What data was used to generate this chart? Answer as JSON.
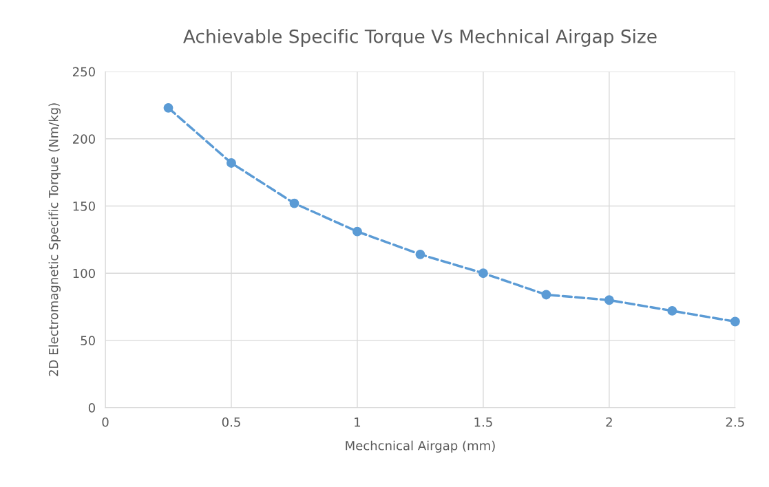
{
  "chart_data": {
    "type": "line",
    "title": "Achievable Specific Torque Vs Mechnical Airgap Size",
    "xlabel": "Mechcnical Airgap (mm)",
    "ylabel": "2D Electromagnetic Specific Torque (Nm/kg)",
    "x": [
      0.25,
      0.5,
      0.75,
      1.0,
      1.25,
      1.5,
      1.75,
      2.0,
      2.25,
      2.5
    ],
    "series": [
      {
        "color": "#5b9bd5",
        "values": [
          223,
          182,
          152,
          131,
          114,
          100,
          84,
          80,
          72,
          64
        ]
      }
    ],
    "xlim": [
      0,
      2.5
    ],
    "ylim": [
      0,
      250
    ],
    "xticks": [
      0,
      0.5,
      1,
      1.5,
      2,
      2.5
    ],
    "yticks": [
      0,
      50,
      100,
      150,
      200,
      250
    ],
    "grid": true,
    "legend": false,
    "marker": "circle",
    "line_style": "dashed"
  }
}
